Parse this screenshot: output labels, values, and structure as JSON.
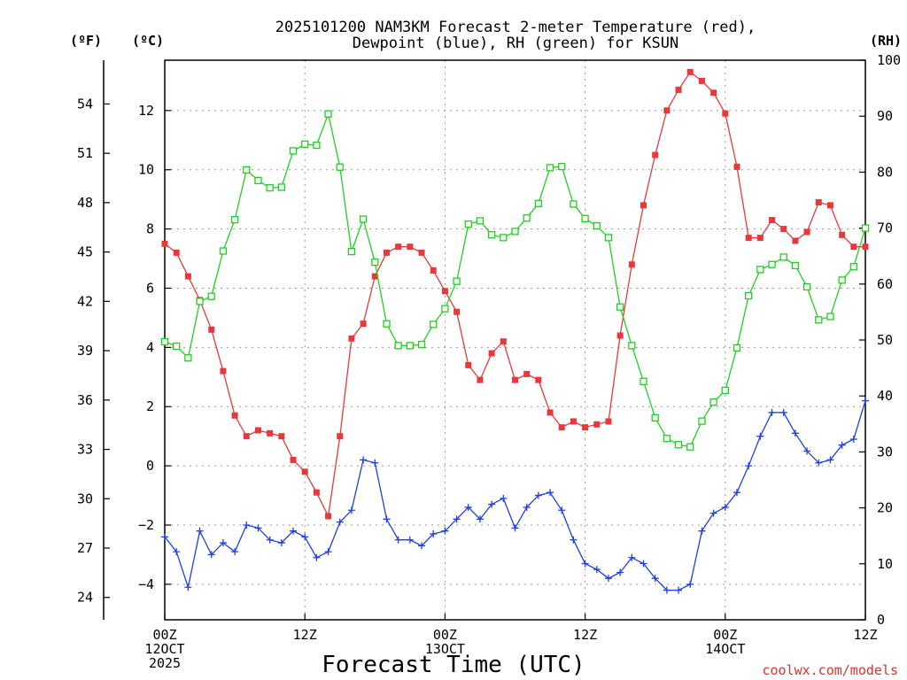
{
  "chart_data": {
    "type": "line",
    "title_lines": [
      "2025101200 NAM3KM Forecast 2-meter Temperature (red),",
      "Dewpoint (blue), RH (green) for KSUN"
    ],
    "xlabel": "Forecast Time (UTC)",
    "credit": "coolwx.com/models",
    "units": {
      "fahrenheit": "(ºF)",
      "celsius": "(ºC)",
      "rh": "(RH)"
    },
    "x_forecast_hours": [
      0,
      1,
      2,
      3,
      4,
      5,
      6,
      7,
      8,
      9,
      10,
      11,
      12,
      13,
      14,
      15,
      16,
      17,
      18,
      19,
      20,
      21,
      22,
      23,
      24,
      25,
      26,
      27,
      28,
      29,
      30,
      31,
      32,
      33,
      34,
      35,
      36,
      37,
      38,
      39,
      40,
      41,
      42,
      43,
      44,
      45,
      46,
      47,
      48,
      49,
      50,
      51,
      52,
      53,
      54,
      55,
      56,
      57,
      58,
      59,
      60
    ],
    "xlim": [
      0,
      60
    ],
    "celsius_range": [
      -5.2,
      13.7
    ],
    "rh_range": [
      0,
      100
    ],
    "x_ticks": [
      {
        "hour": 0,
        "lines": [
          "00Z",
          "12OCT",
          "2025"
        ]
      },
      {
        "hour": 12,
        "lines": [
          "12Z"
        ]
      },
      {
        "hour": 24,
        "lines": [
          "00Z",
          "13OCT"
        ]
      },
      {
        "hour": 36,
        "lines": [
          "12Z"
        ]
      },
      {
        "hour": 48,
        "lines": [
          "00Z",
          "14OCT"
        ]
      },
      {
        "hour": 60,
        "lines": [
          "12Z"
        ]
      }
    ],
    "celsius_ticks": [
      -4,
      -2,
      0,
      2,
      4,
      6,
      8,
      10,
      12
    ],
    "fahrenheit_ticks": [
      24,
      27,
      30,
      33,
      36,
      39,
      42,
      45,
      48,
      51,
      54
    ],
    "rh_ticks": [
      0,
      10,
      20,
      30,
      40,
      50,
      60,
      70,
      80,
      90,
      100
    ],
    "series": [
      {
        "name": "2-meter Temperature",
        "axis": "celsius",
        "color": "#e8383b",
        "marker": "filled-square",
        "values": [
          7.5,
          7.2,
          6.4,
          5.6,
          4.6,
          3.2,
          1.7,
          1.0,
          1.2,
          1.1,
          1.0,
          0.2,
          -0.2,
          -0.9,
          -1.7,
          1.0,
          4.3,
          4.8,
          6.4,
          7.2,
          7.4,
          7.4,
          7.2,
          6.6,
          5.9,
          5.2,
          3.4,
          2.9,
          3.8,
          4.2,
          2.9,
          3.1,
          2.9,
          1.8,
          1.3,
          1.5,
          1.3,
          1.4,
          1.5,
          4.4,
          6.8,
          8.8,
          10.5,
          12.0,
          12.7,
          13.3,
          13.0,
          12.6,
          11.9,
          10.1,
          7.7,
          7.7,
          8.3,
          8.0,
          7.6,
          7.9,
          8.9,
          8.8,
          7.8,
          7.4,
          7.4
        ]
      },
      {
        "name": "Dewpoint",
        "axis": "celsius",
        "color": "#2040e0",
        "marker": "plus",
        "values": [
          -2.4,
          -2.9,
          -4.1,
          -2.2,
          -3.0,
          -2.6,
          -2.9,
          -2.0,
          -2.1,
          -2.5,
          -2.6,
          -2.2,
          -2.4,
          -3.1,
          -2.9,
          -1.9,
          -1.5,
          0.2,
          0.1,
          -1.8,
          -2.5,
          -2.5,
          -2.7,
          -2.3,
          -2.2,
          -1.8,
          -1.4,
          -1.8,
          -1.3,
          -1.1,
          -2.1,
          -1.4,
          -1.0,
          -0.9,
          -1.5,
          -2.5,
          -3.3,
          -3.5,
          -3.8,
          -3.6,
          -3.1,
          -3.3,
          -3.8,
          -4.2,
          -4.2,
          -4.0,
          -2.2,
          -1.6,
          -1.4,
          -0.9,
          0.0,
          1.0,
          1.8,
          1.8,
          1.1,
          0.5,
          0.1,
          0.2,
          0.7,
          0.9,
          2.2
        ]
      },
      {
        "name": "RH",
        "axis": "rh",
        "color": "#20d020",
        "marker": "open-square",
        "values": [
          49.7,
          48.9,
          46.8,
          56.9,
          57.8,
          65.9,
          71.5,
          80.4,
          78.5,
          77.2,
          77.3,
          83.8,
          85.0,
          84.8,
          90.4,
          80.9,
          65.8,
          71.6,
          63.9,
          52.9,
          49.0,
          49.0,
          49.2,
          52.8,
          55.6,
          60.5,
          70.7,
          71.3,
          68.8,
          68.3,
          69.4,
          71.8,
          74.4,
          80.8,
          81.0,
          74.3,
          71.7,
          70.4,
          68.3,
          55.9,
          49.0,
          42.6,
          36.1,
          32.4,
          31.3,
          30.9,
          35.5,
          38.9,
          41.0,
          48.6,
          57.9,
          62.6,
          63.5,
          64.8,
          63.3,
          59.5,
          53.6,
          54.2,
          60.7,
          63.1,
          70.0
        ]
      }
    ]
  }
}
